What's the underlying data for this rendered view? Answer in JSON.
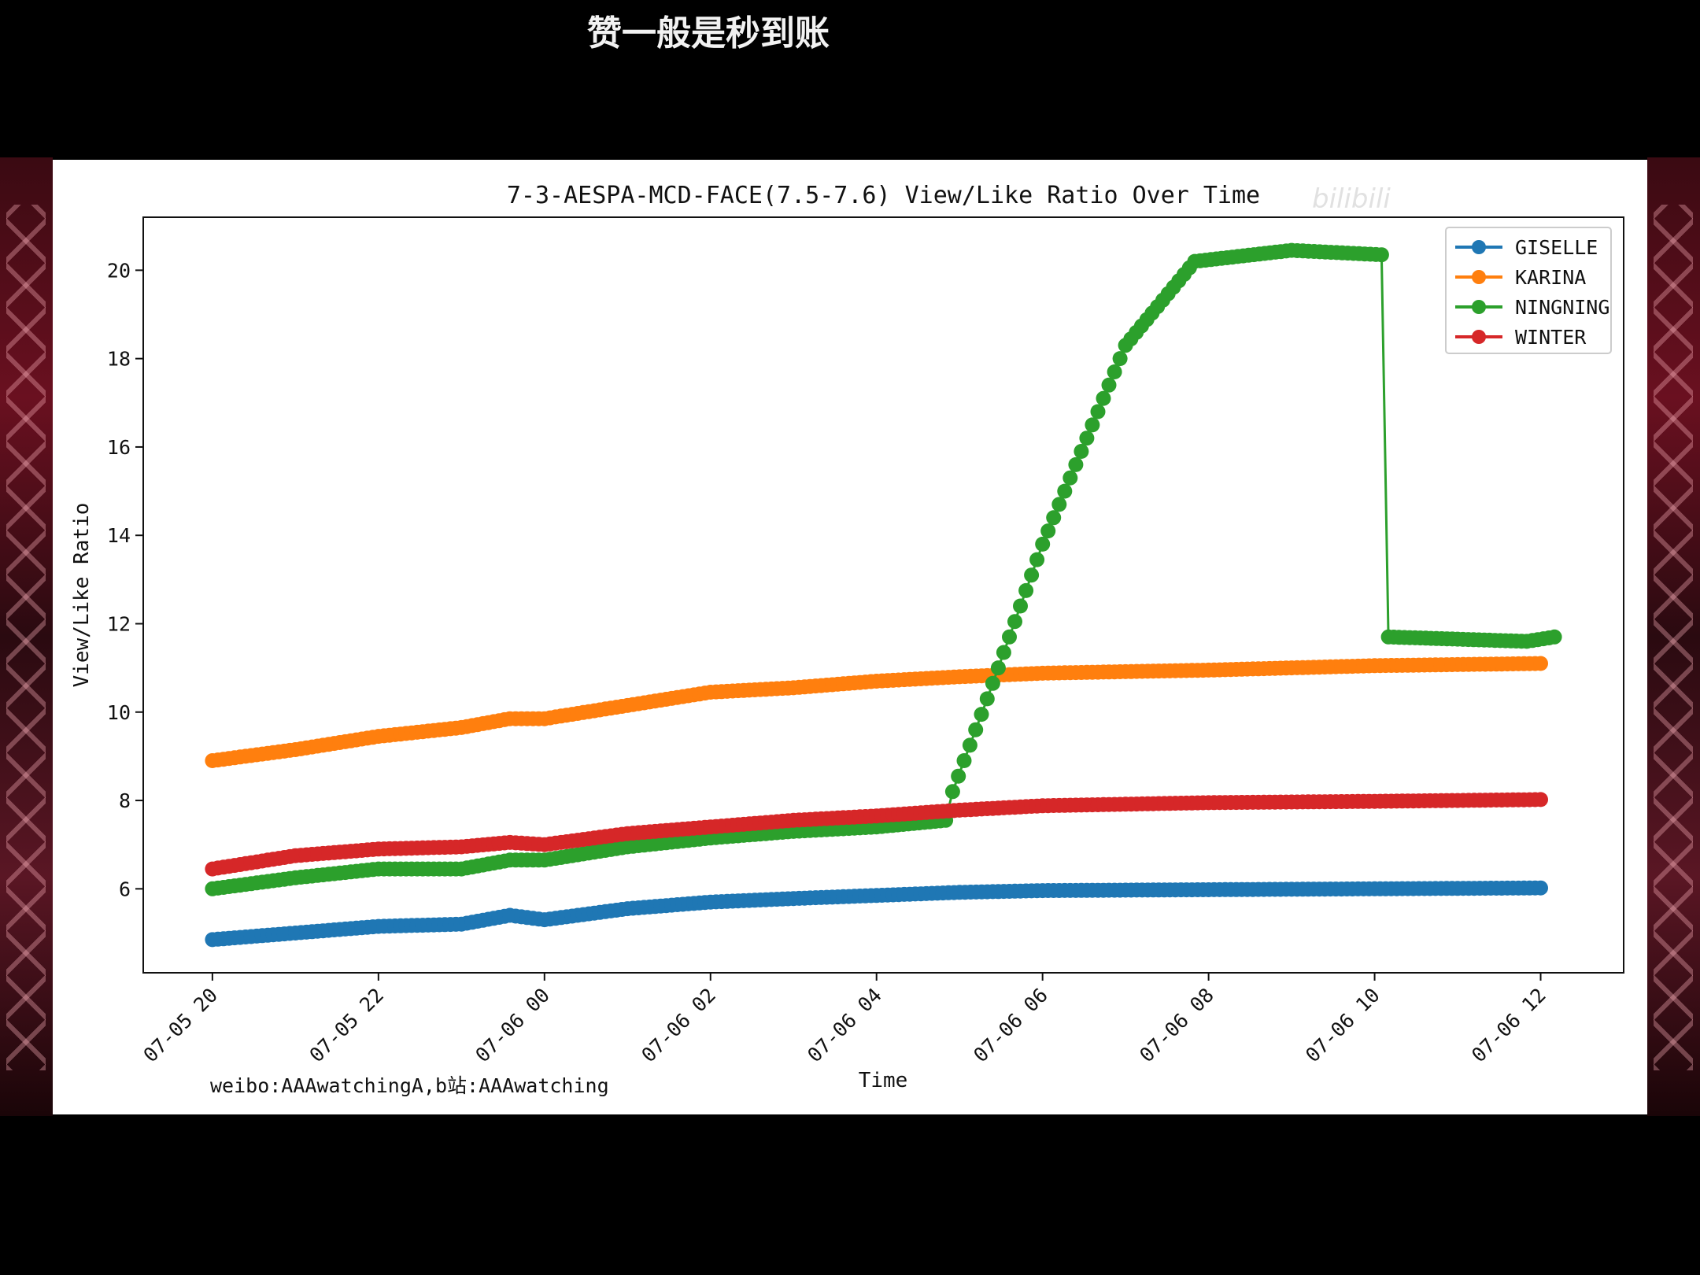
{
  "caption": "赞一般是秒到账",
  "watermark": "bilibili",
  "credit": "weibo:AAAwatchingA,b站:AAAwatching",
  "colors": {
    "GISELLE": "#1f77b4",
    "KARINA": "#ff7f0e",
    "NINGNING": "#2ca02c",
    "WINTER": "#d62728"
  },
  "chart_data": {
    "type": "line",
    "title": "7-3-AESPA-MCD-FACE(7.5-7.6) View/Like Ratio Over Time",
    "xlabel": "Time",
    "ylabel": "View/Like Ratio",
    "xlim": [
      "07-05 19:10",
      "07-06 13:00"
    ],
    "ylim": [
      4.1,
      21.2
    ],
    "x_ticks": [
      "07-05 20",
      "07-05 22",
      "07-06 00",
      "07-06 02",
      "07-06 04",
      "07-06 06",
      "07-06 08",
      "07-06 10",
      "07-06 12"
    ],
    "y_ticks": [
      6,
      8,
      10,
      12,
      14,
      16,
      18,
      20
    ],
    "legend": "top-right",
    "grid": false,
    "markers": "circle",
    "series": [
      {
        "name": "GISELLE",
        "points": [
          [
            "07-05 20:00",
            4.85
          ],
          [
            "07-05 21:00",
            5.0
          ],
          [
            "07-05 22:00",
            5.15
          ],
          [
            "07-05 23:00",
            5.2
          ],
          [
            "07-05 23:35",
            5.4
          ],
          [
            "07-06 00:00",
            5.3
          ],
          [
            "07-06 01:00",
            5.55
          ],
          [
            "07-06 02:00",
            5.7
          ],
          [
            "07-06 03:00",
            5.78
          ],
          [
            "07-06 04:00",
            5.85
          ],
          [
            "07-06 05:00",
            5.92
          ],
          [
            "07-06 06:00",
            5.96
          ],
          [
            "07-06 08:00",
            5.98
          ],
          [
            "07-06 10:00",
            6.0
          ],
          [
            "07-06 12:00",
            6.02
          ]
        ]
      },
      {
        "name": "KARINA",
        "points": [
          [
            "07-05 20:00",
            8.9
          ],
          [
            "07-05 21:00",
            9.15
          ],
          [
            "07-05 22:00",
            9.45
          ],
          [
            "07-05 23:00",
            9.65
          ],
          [
            "07-05 23:35",
            9.85
          ],
          [
            "07-06 00:00",
            9.85
          ],
          [
            "07-06 01:00",
            10.15
          ],
          [
            "07-06 02:00",
            10.45
          ],
          [
            "07-06 03:00",
            10.55
          ],
          [
            "07-06 04:00",
            10.7
          ],
          [
            "07-06 05:00",
            10.8
          ],
          [
            "07-06 06:00",
            10.88
          ],
          [
            "07-06 08:00",
            10.95
          ],
          [
            "07-06 10:00",
            11.05
          ],
          [
            "07-06 12:00",
            11.1
          ]
        ]
      },
      {
        "name": "NINGNING",
        "points": [
          [
            "07-05 20:00",
            6.0
          ],
          [
            "07-05 21:00",
            6.25
          ],
          [
            "07-05 22:00",
            6.45
          ],
          [
            "07-05 23:00",
            6.45
          ],
          [
            "07-05 23:35",
            6.65
          ],
          [
            "07-06 00:00",
            6.65
          ],
          [
            "07-06 01:00",
            6.95
          ],
          [
            "07-06 02:00",
            7.15
          ],
          [
            "07-06 03:00",
            7.3
          ],
          [
            "07-06 04:00",
            7.4
          ],
          [
            "07-06 04:50",
            7.55
          ],
          [
            "07-06 04:55",
            8.2
          ],
          [
            "07-06 05:20",
            10.3
          ],
          [
            "07-06 06:00",
            13.8
          ],
          [
            "07-06 07:00",
            18.3
          ],
          [
            "07-06 07:50",
            20.2
          ],
          [
            "07-06 09:00",
            20.45
          ],
          [
            "07-06 10:05",
            20.35
          ],
          [
            "07-06 10:10",
            11.7
          ],
          [
            "07-06 11:00",
            11.65
          ],
          [
            "07-06 11:50",
            11.6
          ],
          [
            "07-06 12:10",
            11.7
          ]
        ]
      },
      {
        "name": "WINTER",
        "points": [
          [
            "07-05 20:00",
            6.45
          ],
          [
            "07-05 21:00",
            6.75
          ],
          [
            "07-05 22:00",
            6.9
          ],
          [
            "07-05 23:00",
            6.95
          ],
          [
            "07-05 23:35",
            7.05
          ],
          [
            "07-06 00:00",
            7.0
          ],
          [
            "07-06 01:00",
            7.25
          ],
          [
            "07-06 02:00",
            7.4
          ],
          [
            "07-06 03:00",
            7.55
          ],
          [
            "07-06 04:00",
            7.65
          ],
          [
            "07-06 05:00",
            7.78
          ],
          [
            "07-06 06:00",
            7.88
          ],
          [
            "07-06 08:00",
            7.95
          ],
          [
            "07-06 10:00",
            7.98
          ],
          [
            "07-06 12:00",
            8.02
          ]
        ]
      }
    ]
  }
}
